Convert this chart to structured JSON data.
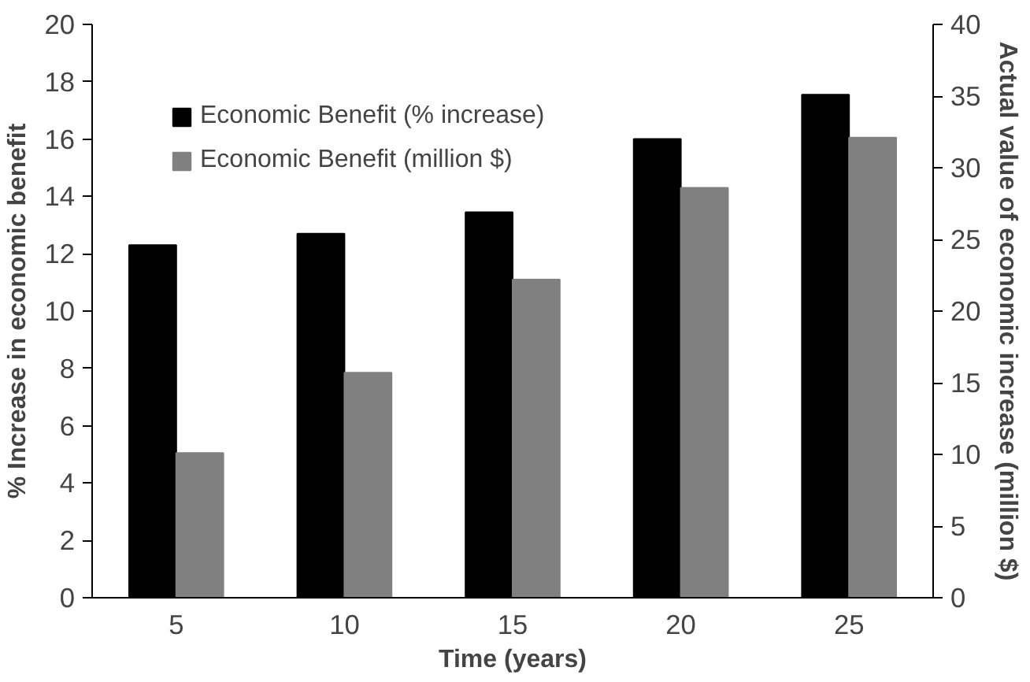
{
  "chart_data": {
    "type": "bar",
    "xlabel": "Time (years)",
    "ylabel": "% Increase in economic benefit",
    "y2label": "Actual value of economic increase (million $)",
    "categories": [
      "5",
      "10",
      "15",
      "20",
      "25"
    ],
    "series": [
      {
        "name": "Economic Benefit (% increase)",
        "color": "#000000",
        "values": [
          12.3,
          12.7,
          13.45,
          16.0,
          17.55
        ]
      },
      {
        "name": "Economic Benefit (million $)",
        "color": "#808080",
        "values": [
          10.1,
          15.7,
          22.2,
          28.6,
          32.1
        ],
        "axis": "y2"
      }
    ],
    "ylim": [
      0,
      20
    ],
    "yticks": [
      0,
      2,
      4,
      6,
      8,
      10,
      12,
      14,
      16,
      18,
      20
    ],
    "y2lim": [
      0,
      40
    ],
    "y2ticks": [
      0,
      5,
      10,
      15,
      20,
      25,
      30,
      35,
      40
    ],
    "grid": false,
    "legend": "top left"
  }
}
